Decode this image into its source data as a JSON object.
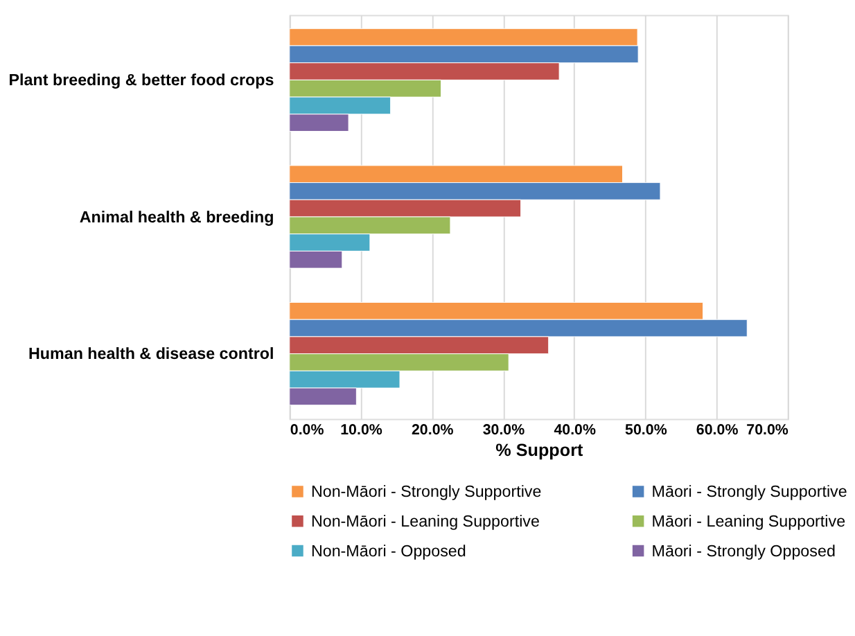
{
  "chart_data": {
    "type": "bar",
    "orientation": "horizontal",
    "xlabel": "% Support",
    "categories": [
      "Plant breeding & better food crops",
      "Animal health & breeding",
      "Human health & disease control"
    ],
    "series": [
      {
        "name": "Non-Māori  - Strongly Supportive",
        "color": "#f79646",
        "values": [
          48.9,
          46.8,
          58.1
        ]
      },
      {
        "name": "Māori - Strongly Supportive",
        "color": "#4f81bd",
        "values": [
          49.0,
          52.1,
          64.3
        ]
      },
      {
        "name": "Non-Māori  - Leaning Supportive",
        "color": "#c0504d",
        "values": [
          37.9,
          32.5,
          36.4
        ]
      },
      {
        "name": "Māori - Leaning Supportive",
        "color": "#9bbb59",
        "values": [
          21.3,
          22.6,
          30.8
        ]
      },
      {
        "name": "Non-Māori  - Opposed",
        "color": "#4bacc6",
        "values": [
          14.2,
          11.3,
          15.5
        ]
      },
      {
        "name": "Māori - Strongly Opposed",
        "color": "#8064a2",
        "values": [
          8.3,
          7.4,
          9.4
        ]
      }
    ],
    "xlim": [
      0,
      70
    ],
    "xticks": [
      {
        "value": 0,
        "label": "0.0%"
      },
      {
        "value": 10,
        "label": "10.0%"
      },
      {
        "value": 20,
        "label": "20.0%"
      },
      {
        "value": 30,
        "label": "30.0%"
      },
      {
        "value": 40,
        "label": "40.0%"
      },
      {
        "value": 50,
        "label": "50.0%"
      },
      {
        "value": 60,
        "label": "60.0%"
      },
      {
        "value": 70,
        "label": "70.0%"
      }
    ],
    "grid": "x",
    "legend": "bottom"
  }
}
